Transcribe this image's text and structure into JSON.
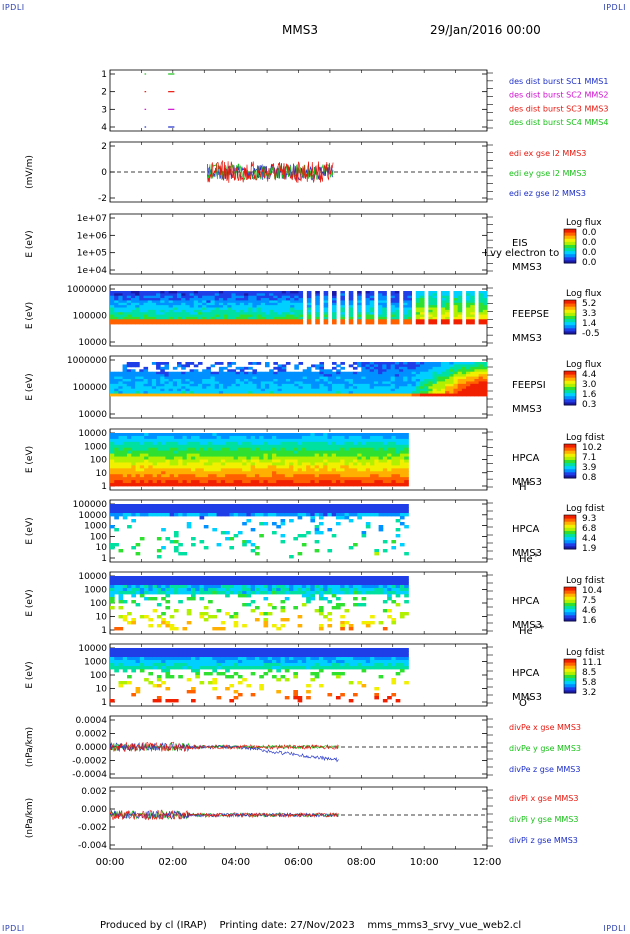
{
  "corners": {
    "tl": "IPDLI",
    "tr": "IPDLI",
    "bl": "IPDLI",
    "br": "IPDLI"
  },
  "header": {
    "spacecraft": "MMS3",
    "date": "29/Jan/2016 00:00"
  },
  "footer": {
    "text": "Produced by cl (IRAP)    Printing date: 27/Nov/2023    mms_mms3_srvy_vue_web2.cl"
  },
  "colors": {
    "red": "#e8170e",
    "green": "#18c018",
    "blue": "#1d2ec8",
    "magenta": "#d010d0"
  },
  "chart_data": [
    {
      "type": "scatter",
      "name": "burst",
      "ylim": [
        0.5,
        4.5
      ],
      "yticks": [
        "1",
        "2",
        "3",
        "4"
      ],
      "legend": [
        {
          "text": "des dist burst SC1 MMS1",
          "color": "#1d2ec8"
        },
        {
          "text": "des dist burst SC2 MMS2",
          "color": "#d010d0"
        },
        {
          "text": "des dist burst SC3 MMS3",
          "color": "#e8170e"
        },
        {
          "text": "des dist burst SC4 MMS4",
          "color": "#18c018"
        }
      ]
    },
    {
      "type": "line",
      "name": "edi",
      "ylabel": "(mV/m)",
      "ylim": [
        -3,
        2.6
      ],
      "yticks": [
        "2",
        "0",
        "-2"
      ],
      "legend": [
        {
          "text": "edi ex gse l2 MMS3",
          "color": "#e8170e"
        },
        {
          "text": "edi ey gse l2 MMS3",
          "color": "#18c018"
        },
        {
          "text": "edi ez gse l2 MMS3",
          "color": "#1d2ec8"
        }
      ]
    },
    {
      "type": "heatmap",
      "name": "eis",
      "ylabel": "E (eV)",
      "yticks": [
        "1e+07",
        "1e+06",
        "1e+05",
        "1e+04"
      ],
      "inst": "EIS",
      "sc": "MMS3",
      "overlay": "I vy electron to",
      "cbar_title": "Log flux",
      "cbar_ticks": [
        "0.0",
        "0.0",
        "0.0",
        "0.0"
      ]
    },
    {
      "type": "heatmap",
      "name": "feepse",
      "ylabel": "E (eV)",
      "yticks": [
        "1000000",
        "100000",
        "10000"
      ],
      "inst": "FEEPSE",
      "sc": "MMS3",
      "cbar_title": "Log flux",
      "cbar_ticks": [
        "5.2",
        "3.3",
        "1.4",
        "-0.5"
      ]
    },
    {
      "type": "heatmap",
      "name": "feepsi",
      "ylabel": "E (eV)",
      "yticks": [
        "1000000",
        "100000",
        "10000"
      ],
      "inst": "FEEPSI",
      "sc": "MMS3",
      "cbar_title": "Log flux",
      "cbar_ticks": [
        "4.4",
        "3.0",
        "1.6",
        "0.3"
      ]
    },
    {
      "type": "heatmap",
      "name": "hpca-h",
      "ylabel": "E (eV)",
      "yticks": [
        "10000",
        "1000",
        "100",
        "10",
        "1"
      ],
      "inst": "HPCA",
      "sc": "MMS3",
      "species": "H",
      "charge": "+",
      "cbar_title": "Log fdist",
      "cbar_ticks": [
        "10.2",
        "7.1",
        "3.9",
        "0.8"
      ]
    },
    {
      "type": "heatmap",
      "name": "hpca-he",
      "ylabel": "E (eV)",
      "yticks": [
        "100000",
        "10000",
        "1000",
        "100",
        "10",
        "1"
      ],
      "inst": "HPCA",
      "sc": "MMS3",
      "species": "He",
      "charge": "+",
      "cbar_title": "Log fdist",
      "cbar_ticks": [
        "9.3",
        "6.8",
        "4.4",
        "1.9"
      ]
    },
    {
      "type": "heatmap",
      "name": "hpca-hepp",
      "ylabel": "E (eV)",
      "yticks": [
        "10000",
        "1000",
        "100",
        "10",
        "1"
      ],
      "inst": "HPCA",
      "sc": "MMS3",
      "species": "He",
      "charge": "++",
      "cbar_title": "Log fdist",
      "cbar_ticks": [
        "10.4",
        "7.5",
        "4.6",
        "1.6"
      ]
    },
    {
      "type": "heatmap",
      "name": "hpca-o",
      "ylabel": "E (eV)",
      "yticks": [
        "10000",
        "1000",
        "100",
        "10",
        "1"
      ],
      "inst": "HPCA",
      "sc": "MMS3",
      "species": "O",
      "charge": "+",
      "cbar_title": "Log fdist",
      "cbar_ticks": [
        "11.1",
        "8.5",
        "5.8",
        "3.2"
      ]
    },
    {
      "type": "line",
      "name": "divpe",
      "ylabel": "(nPa/km)",
      "ylim": [
        -0.0048,
        0.0048
      ],
      "yticks": [
        "0.0004",
        "0.0002",
        "0.0000",
        "-0.0002",
        "-0.0004"
      ],
      "legend": [
        {
          "text": "divPe x gse MMS3",
          "color": "#e8170e"
        },
        {
          "text": "divPe y gse MMS3",
          "color": "#18c018"
        },
        {
          "text": "divPe z gse MMS3",
          "color": "#1d2ec8"
        }
      ]
    },
    {
      "type": "line",
      "name": "divpi",
      "ylabel": "(nPa/km)",
      "ylim": [
        -0.0048,
        0.003
      ],
      "yticks": [
        "0.002",
        "0.000",
        "-0.002",
        "-0.004"
      ],
      "legend": [
        {
          "text": "divPi x gse MMS3",
          "color": "#e8170e"
        },
        {
          "text": "divPi y gse MMS3",
          "color": "#18c018"
        },
        {
          "text": "divPi z gse MMS3",
          "color": "#1d2ec8"
        }
      ]
    }
  ],
  "xaxis": {
    "ticks": [
      "00:00",
      "02:00",
      "04:00",
      "06:00",
      "08:00",
      "10:00",
      "12:00"
    ],
    "range_hours": [
      0,
      12
    ]
  }
}
